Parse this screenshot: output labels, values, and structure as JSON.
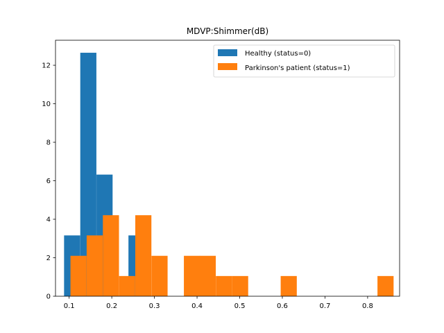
{
  "chart_data": {
    "type": "bar",
    "title": "MDVP:Shimmer(dB)",
    "xlabel": "",
    "ylabel": "",
    "xlim": [
      0.068,
      0.875
    ],
    "ylim": [
      0,
      13.3
    ],
    "bin_width": 0.0378,
    "x_ticks": [
      0.1,
      0.2,
      0.3,
      0.4,
      0.5,
      0.6,
      0.7,
      0.8
    ],
    "x_tick_labels": [
      "0.1",
      "0.2",
      "0.3",
      "0.4",
      "0.5",
      "0.6",
      "0.7",
      "0.8"
    ],
    "y_ticks": [
      0,
      2,
      4,
      6,
      8,
      10,
      12
    ],
    "y_tick_labels": [
      "0",
      "2",
      "4",
      "6",
      "8",
      "10",
      "12"
    ],
    "legend_position": "upper-right",
    "grid": false,
    "series": [
      {
        "name": "Healthy (status=0)",
        "color": "#1f77b4",
        "x": [
          0.107,
          0.145,
          0.183,
          0.221,
          0.258,
          0.296,
          0.334,
          0.372,
          0.41,
          0.448,
          0.485,
          0.523,
          0.561,
          0.599,
          0.637,
          0.674,
          0.712,
          0.75,
          0.788,
          0.826
        ],
        "values": [
          3.16,
          12.65,
          6.32,
          0,
          3.16,
          0,
          0,
          0,
          0,
          0,
          0,
          0,
          0,
          0,
          0,
          0,
          0,
          0,
          0,
          0
        ]
      },
      {
        "name": "Parkinson's patient (status=1)",
        "color": "#ff7f0e",
        "x": [
          0.122,
          0.16,
          0.198,
          0.236,
          0.274,
          0.312,
          0.35,
          0.388,
          0.425,
          0.463,
          0.501,
          0.539,
          0.577,
          0.615,
          0.652,
          0.69,
          0.728,
          0.766,
          0.804,
          0.842
        ],
        "values": [
          2.1,
          3.16,
          4.21,
          1.05,
          4.21,
          2.1,
          0,
          2.1,
          2.1,
          1.05,
          1.05,
          0,
          0,
          1.05,
          0,
          0,
          0,
          0,
          0,
          1.05
        ]
      }
    ]
  }
}
